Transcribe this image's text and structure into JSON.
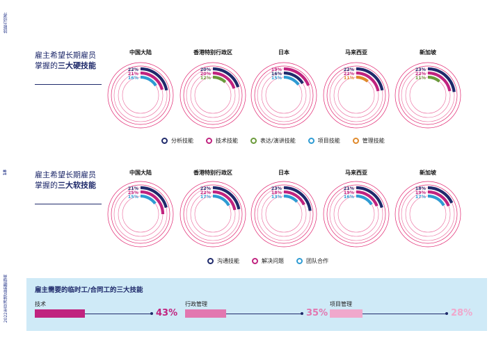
{
  "sidebar": {
    "top_text": "技能与培养",
    "page_number": "18",
    "bottom_text": "2022年亚洲地区薪酬指南"
  },
  "colors": {
    "navy": "#1f2a6b",
    "magenta": "#c0237f",
    "green": "#6a9a3a",
    "blue": "#2e9bd3",
    "orange": "#e08a2c",
    "light_magenta": "#e277b0",
    "lighter_magenta": "#f0a8cc",
    "ring": "#e0236f"
  },
  "hard_skills": {
    "heading_line1": "雇主希望长期雇员",
    "heading_prefix": "掌握的",
    "heading_bold": "三大硬技能",
    "legend": [
      {
        "label": "分析技能",
        "color": "#1f2a6b"
      },
      {
        "label": "技术技能",
        "color": "#c0237f"
      },
      {
        "label": "表达/演讲技能",
        "color": "#6a9a3a"
      },
      {
        "label": "项目技能",
        "color": "#2e9bd3"
      },
      {
        "label": "管理技能",
        "color": "#e08a2c"
      }
    ]
  },
  "soft_skills": {
    "heading_line1": "雇主希望长期雇员",
    "heading_prefix": "掌握的",
    "heading_bold": "三大软技能",
    "legend": [
      {
        "label": "沟通技能",
        "color": "#1f2a6b"
      },
      {
        "label": "解决问题",
        "color": "#c0237f"
      },
      {
        "label": "团队合作",
        "color": "#2e9bd3"
      }
    ]
  },
  "temp_skills": {
    "title": "雇主需要的临时工/合同工的三大技能",
    "items": [
      {
        "label": "技术",
        "value": 43,
        "value_text": "43%",
        "color": "#c0237f"
      },
      {
        "label": "行政管理",
        "value": 35,
        "value_text": "35%",
        "color": "#e277b0"
      },
      {
        "label": "项目管理",
        "value": 28,
        "value_text": "28%",
        "color": "#f0a8cc"
      }
    ]
  },
  "chart_data": [
    {
      "type": "donut-rings",
      "title": "三大硬技能",
      "regions": [
        {
          "name": "中国大陆",
          "series": [
            {
              "name": "分析技能",
              "value": 22,
              "color": "#1f2a6b"
            },
            {
              "name": "技术技能",
              "value": 21,
              "color": "#c0237f"
            },
            {
              "name": "项目技能",
              "value": 16,
              "color": "#2e9bd3"
            }
          ]
        },
        {
          "name": "香港特别行政区",
          "series": [
            {
              "name": "分析技能",
              "value": 20,
              "color": "#1f2a6b"
            },
            {
              "name": "技术技能",
              "value": 20,
              "color": "#c0237f"
            },
            {
              "name": "表达/演讲技能",
              "value": 12,
              "color": "#6a9a3a"
            }
          ]
        },
        {
          "name": "日本",
          "series": [
            {
              "name": "技术技能",
              "value": 19,
              "color": "#c0237f"
            },
            {
              "name": "分析技能",
              "value": 16,
              "color": "#1f2a6b"
            },
            {
              "name": "项目技能",
              "value": 15,
              "color": "#2e9bd3"
            }
          ]
        },
        {
          "name": "马来西亚",
          "series": [
            {
              "name": "分析技能",
              "value": 22,
              "color": "#1f2a6b"
            },
            {
              "name": "技术技能",
              "value": 22,
              "color": "#c0237f"
            },
            {
              "name": "管理技能",
              "value": 11,
              "color": "#e08a2c"
            }
          ]
        },
        {
          "name": "新加坡",
          "series": [
            {
              "name": "分析技能",
              "value": 23,
              "color": "#1f2a6b"
            },
            {
              "name": "技术技能",
              "value": 22,
              "color": "#c0237f"
            },
            {
              "name": "表达/演讲技能",
              "value": 11,
              "color": "#6a9a3a"
            }
          ]
        }
      ]
    },
    {
      "type": "donut-rings",
      "title": "三大软技能",
      "regions": [
        {
          "name": "中国大陆",
          "series": [
            {
              "name": "沟通技能",
              "value": 21,
              "color": "#1f2a6b"
            },
            {
              "name": "解决问题",
              "value": 25,
              "color": "#c0237f"
            },
            {
              "name": "团队合作",
              "value": 15,
              "color": "#2e9bd3"
            }
          ]
        },
        {
          "name": "香港特别行政区",
          "series": [
            {
              "name": "沟通技能",
              "value": 22,
              "color": "#1f2a6b"
            },
            {
              "name": "解决问题",
              "value": 22,
              "color": "#c0237f"
            },
            {
              "name": "团队合作",
              "value": 17,
              "color": "#2e9bd3"
            }
          ]
        },
        {
          "name": "日本",
          "series": [
            {
              "name": "沟通技能",
              "value": 23,
              "color": "#1f2a6b"
            },
            {
              "name": "解决问题",
              "value": 18,
              "color": "#c0237f"
            },
            {
              "name": "团队合作",
              "value": 13,
              "color": "#2e9bd3"
            }
          ]
        },
        {
          "name": "马来西亚",
          "series": [
            {
              "name": "沟通技能",
              "value": 21,
              "color": "#1f2a6b"
            },
            {
              "name": "解决问题",
              "value": 19,
              "color": "#c0237f"
            },
            {
              "name": "团队合作",
              "value": 16,
              "color": "#2e9bd3"
            }
          ]
        },
        {
          "name": "新加坡",
          "series": [
            {
              "name": "沟通技能",
              "value": 18,
              "color": "#1f2a6b"
            },
            {
              "name": "解决问题",
              "value": 19,
              "color": "#c0237f"
            },
            {
              "name": "团队合作",
              "value": 17,
              "color": "#2e9bd3"
            }
          ]
        }
      ]
    },
    {
      "type": "bar",
      "title": "雇主需要的临时工/合同工的三大技能",
      "categories": [
        "技术",
        "行政管理",
        "项目管理"
      ],
      "values": [
        43,
        35,
        28
      ],
      "ylim": [
        0,
        100
      ]
    }
  ]
}
